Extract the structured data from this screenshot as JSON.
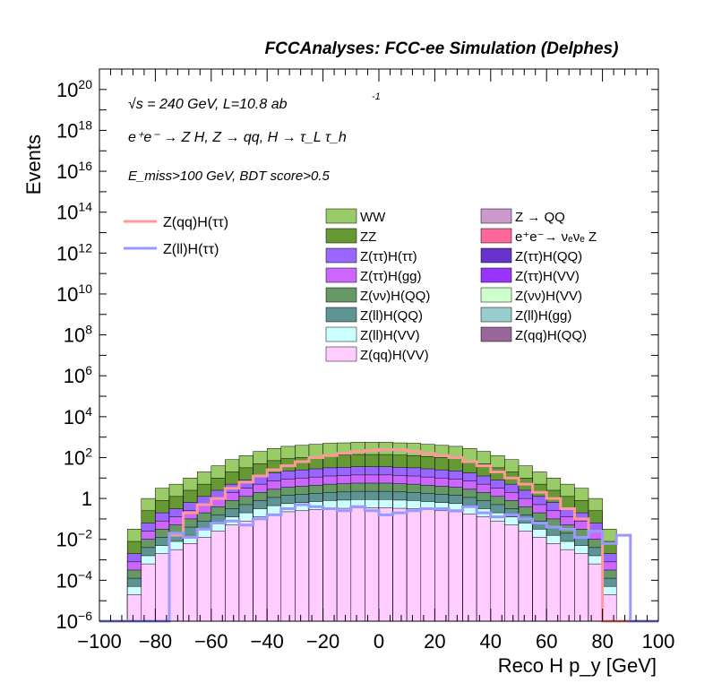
{
  "chart_data": {
    "type": "histogram",
    "title": "FCCAnalyses: FCC-ee Simulation (Delphes)",
    "xlabel": "Reco H p_y [GeV]",
    "ylabel": "Events",
    "xlim": [
      -100,
      100
    ],
    "ylim_exponent": [
      -6,
      21
    ],
    "yscale": "log",
    "x_ticks": [
      "−100",
      "−80",
      "−60",
      "−40",
      "−20",
      "0",
      "20",
      "40",
      "60",
      "80",
      "100"
    ],
    "y_ticks": [
      {
        "base": "10",
        "exp": "20",
        "v": 20
      },
      {
        "base": "10",
        "exp": "18",
        "v": 18
      },
      {
        "base": "10",
        "exp": "16",
        "v": 16
      },
      {
        "base": "10",
        "exp": "14",
        "v": 14
      },
      {
        "base": "10",
        "exp": "12",
        "v": 12
      },
      {
        "base": "10",
        "exp": "10",
        "v": 10
      },
      {
        "base": "10",
        "exp": "8",
        "v": 8
      },
      {
        "base": "10",
        "exp": "6",
        "v": 6
      },
      {
        "base": "10",
        "exp": "4",
        "v": 4
      },
      {
        "base": "10",
        "exp": "2",
        "v": 2
      },
      {
        "base": "1",
        "exp": "",
        "v": 0
      },
      {
        "base": "10",
        "exp": "−2",
        "v": -2
      },
      {
        "base": "10",
        "exp": "−4",
        "v": -4
      },
      {
        "base": "10",
        "exp": "−6",
        "v": -6
      }
    ],
    "annotations": {
      "energy_lumi": "√s = 240 GeV, L=10.8 ab",
      "energy_lumi_exp": "-1",
      "process": "e⁺e⁻ → Z H, Z → qq, H → τ_L τ_h",
      "selection": "E_miss>100 GeV, BDT score>0.5"
    },
    "bin_edges_x": [
      -100,
      -95,
      -90,
      -85,
      -80,
      -75,
      -70,
      -65,
      -60,
      -55,
      -50,
      -45,
      -40,
      -35,
      -30,
      -25,
      -20,
      -15,
      -10,
      -5,
      0,
      5,
      10,
      15,
      20,
      25,
      30,
      35,
      40,
      45,
      50,
      55,
      60,
      65,
      70,
      75,
      80,
      85,
      90,
      95,
      100
    ],
    "stacked_top_log10": [
      null,
      null,
      -1.5,
      0.0,
      0.5,
      0.7,
      1.0,
      1.3,
      1.6,
      1.9,
      2.1,
      2.3,
      2.45,
      2.55,
      2.6,
      2.65,
      2.7,
      2.72,
      2.75,
      2.75,
      2.75,
      2.72,
      2.7,
      2.65,
      2.6,
      2.55,
      2.45,
      2.3,
      2.1,
      1.9,
      1.6,
      1.3,
      1.0,
      0.7,
      0.5,
      0.0,
      -1.5,
      null,
      null,
      null
    ],
    "series": [
      {
        "name": "WW",
        "color": "#99cc66"
      },
      {
        "name": "ZZ",
        "color": "#669933"
      },
      {
        "name": "Z(ττ)H(ττ)",
        "color": "#9966ff"
      },
      {
        "name": "Z(ττ)H(gg)",
        "color": "#cc66ff"
      },
      {
        "name": "Z(νν)H(QQ)",
        "color": "#669966"
      },
      {
        "name": "Z(ll)H(QQ)",
        "color": "#5f9494"
      },
      {
        "name": "Z(ll)H(VV)",
        "color": "#ccffff"
      },
      {
        "name": "Z(qq)H(VV)",
        "color": "#ffccff"
      },
      {
        "name": "Z → QQ",
        "color": "#cc99cc"
      },
      {
        "name": "e⁺e⁻→ νₑνₑ Z",
        "color": "#ff6699"
      },
      {
        "name": "Z(ττ)H(QQ)",
        "color": "#6633cc"
      },
      {
        "name": "Z(ττ)H(VV)",
        "color": "#9933ff"
      },
      {
        "name": "Z(νν)H(VV)",
        "color": "#ccffcc"
      },
      {
        "name": "Z(ll)H(gg)",
        "color": "#99cccc"
      },
      {
        "name": "Z(qq)H(QQ)",
        "color": "#996699"
      }
    ],
    "signal_series": [
      {
        "name": "Z(qq)H(ττ)",
        "color": "#ff9999",
        "log10_values": [
          null,
          null,
          null,
          null,
          null,
          -1.8,
          -0.7,
          -0.3,
          0.0,
          0.5,
          0.8,
          1.1,
          1.4,
          1.6,
          1.8,
          2.0,
          2.1,
          2.2,
          2.3,
          2.35,
          2.4,
          2.38,
          2.3,
          2.2,
          2.1,
          2.0,
          1.8,
          1.6,
          1.3,
          1.0,
          0.7,
          0.3,
          0.0,
          -0.5,
          -1.0,
          -1.6,
          null,
          null,
          null,
          null
        ]
      },
      {
        "name": "Z(ll)H(ττ)",
        "color": "#9999ff",
        "log10_values": [
          null,
          null,
          null,
          null,
          null,
          -1.7,
          -1.9,
          -1.5,
          -1.2,
          -1.1,
          -1.3,
          -1.0,
          -0.8,
          -0.5,
          -0.3,
          -0.4,
          -0.5,
          -0.6,
          -0.4,
          -0.6,
          -0.8,
          -0.7,
          -0.6,
          -0.5,
          -0.5,
          -0.6,
          -0.4,
          -0.7,
          -0.9,
          -0.8,
          -1.0,
          -1.2,
          -1.4,
          -1.5,
          -1.9,
          -1.6,
          -2.2,
          -1.8,
          null,
          null
        ]
      }
    ]
  }
}
